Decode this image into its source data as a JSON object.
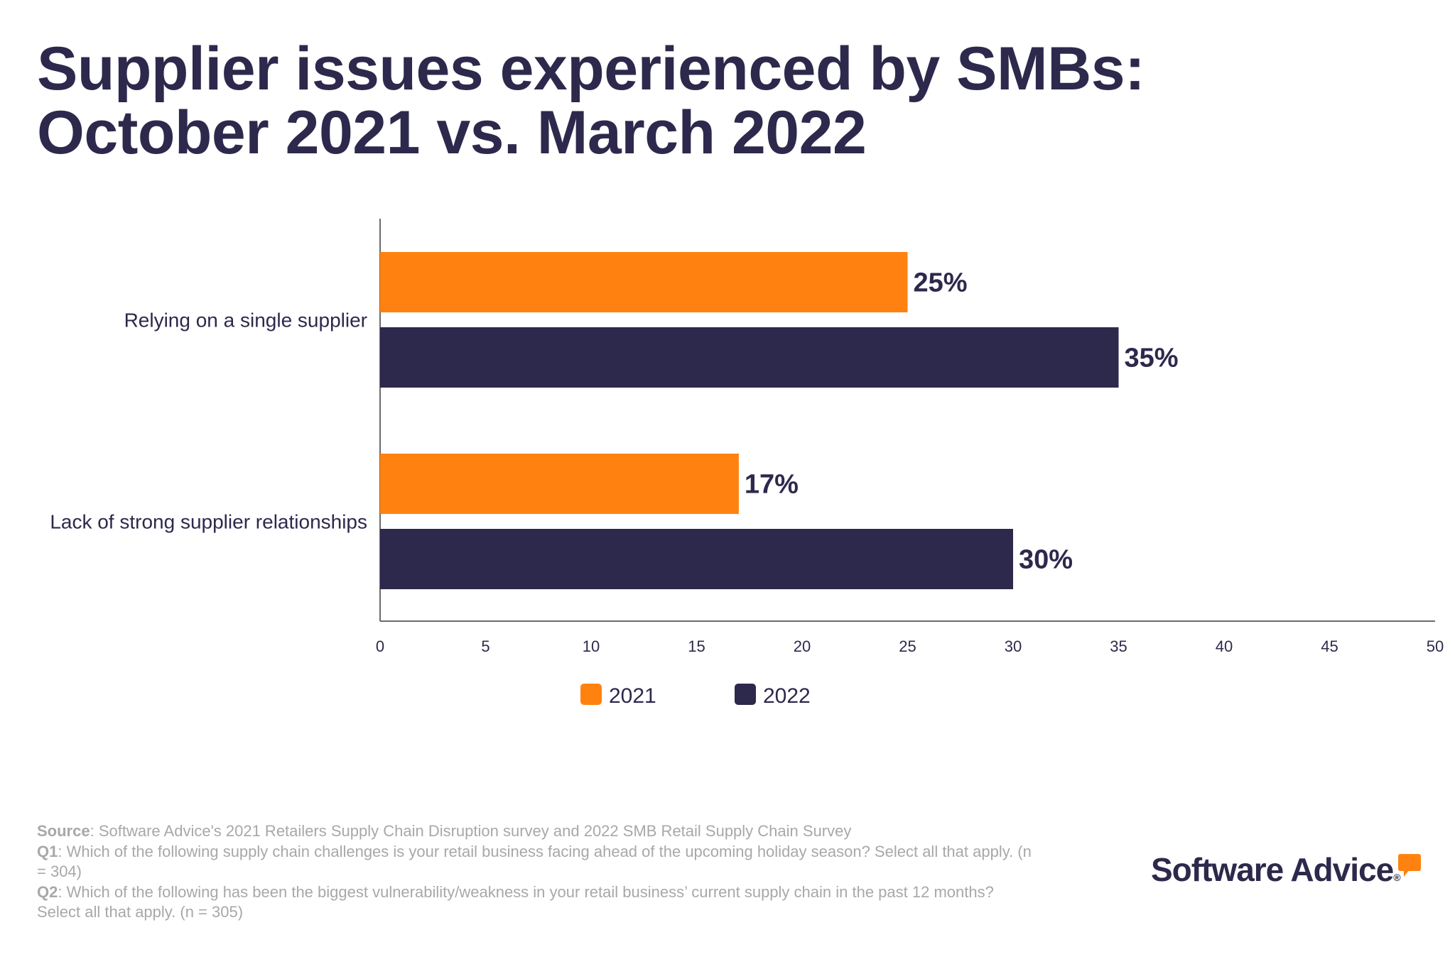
{
  "title_lines": [
    "Supplier issues experienced by SMBs:",
    "October 2021 vs. March 2022"
  ],
  "chart_data": {
    "type": "bar",
    "orientation": "horizontal",
    "title": "Supplier issues experienced by SMBs: October 2021 vs. March 2022",
    "categories": [
      "Relying on a single supplier",
      "Lack of strong supplier relationships"
    ],
    "series": [
      {
        "name": "2021",
        "color": "#FF8210",
        "values": [
          25,
          17
        ],
        "labels": [
          "25%",
          "17%"
        ]
      },
      {
        "name": "2022",
        "color": "#2D294C",
        "values": [
          35,
          30
        ],
        "labels": [
          "35%",
          "30%"
        ]
      }
    ],
    "xlim": [
      0,
      50
    ],
    "xticks": [
      0,
      5,
      10,
      15,
      20,
      25,
      30,
      35,
      40,
      45,
      50
    ],
    "xlabel": "",
    "ylabel": "",
    "grid": false,
    "legend_placement": "bottom-center"
  },
  "footer": {
    "source_label": "Source",
    "source_text": ": Software Advice's 2021 Retailers Supply Chain Disruption survey and 2022 SMB Retail Supply Chain Survey",
    "q1_label": "Q1",
    "q1_text": ": Which of the following supply chain challenges is your retail business facing ahead of the upcoming holiday season? Select all that apply. (n = 304)",
    "q2_label": "Q2",
    "q2_text": ": Which of the following has been the biggest vulnerability/weakness in your retail business’ current supply chain in the past 12 months? Select all that apply.  (n = 305)"
  },
  "logo": {
    "text": "Software Advice",
    "mark": "®"
  }
}
